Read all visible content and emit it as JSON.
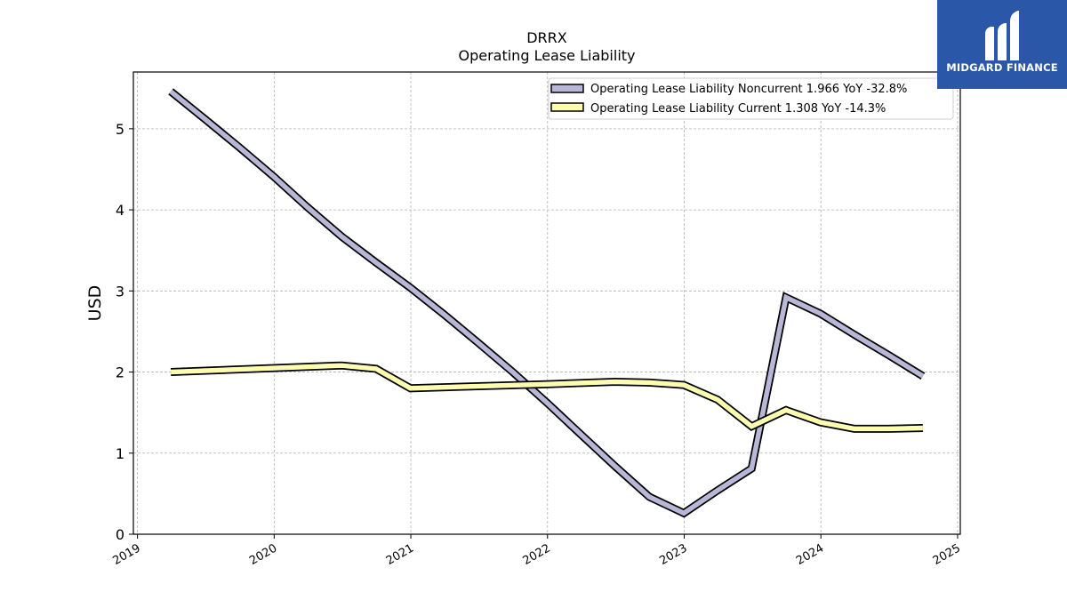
{
  "brand": {
    "name": "MIDGARD FINANCE",
    "color": "#2b57a8"
  },
  "chart_data": {
    "type": "line",
    "title": "DRRX",
    "subtitle": "Operating Lease Liability",
    "ylabel": "USD",
    "xlabel": "",
    "ylim": [
      0,
      5.7
    ],
    "xlim": [
      2018.97,
      2025.02
    ],
    "yticks": [
      0,
      1,
      2,
      3,
      4,
      5
    ],
    "xticks": [
      "2019",
      "2020",
      "2021",
      "2022",
      "2023",
      "2024",
      "2025"
    ],
    "grid": true,
    "legend_position": "top-right",
    "series": [
      {
        "name": "Operating Lease Liability Noncurrent",
        "legend": "Operating Lease Liability Noncurrent  1.966 YoY -32.8%",
        "color": "#b9b7d8",
        "x": [
          "2019-03-31",
          "2019-06-30",
          "2019-09-30",
          "2019-12-31",
          "2020-03-31",
          "2020-06-30",
          "2020-09-30",
          "2020-12-31",
          "2021-03-31",
          "2021-06-30",
          "2021-09-30",
          "2021-12-31",
          "2022-03-31",
          "2022-06-30",
          "2022-09-30",
          "2022-12-31",
          "2023-03-31",
          "2023-06-30",
          "2023-09-30",
          "2023-12-31",
          "2024-03-31",
          "2024-06-30",
          "2024-09-30"
        ],
        "values": [
          5.46,
          5.12,
          4.77,
          4.41,
          4.03,
          3.67,
          3.35,
          3.04,
          2.71,
          2.36,
          2.0,
          1.62,
          1.23,
          0.84,
          0.46,
          0.26,
          0.54,
          0.81,
          2.92,
          2.72,
          2.46,
          2.21,
          1.95
        ]
      },
      {
        "name": "Operating Lease Liability Current",
        "legend": "Operating Lease Liability Current  1.308 YoY -14.3%",
        "color": "#fdfdb0",
        "x": [
          "2019-03-31",
          "2020-06-30",
          "2020-09-30",
          "2020-12-31",
          "2021-12-31",
          "2022-06-30",
          "2022-09-30",
          "2022-12-31",
          "2023-03-31",
          "2023-06-30",
          "2023-09-30",
          "2023-12-31",
          "2024-03-31",
          "2024-06-30",
          "2024-09-30"
        ],
        "values": [
          2.0,
          2.08,
          2.04,
          1.8,
          1.85,
          1.88,
          1.87,
          1.84,
          1.66,
          1.33,
          1.53,
          1.38,
          1.3,
          1.3,
          1.31
        ]
      }
    ]
  }
}
